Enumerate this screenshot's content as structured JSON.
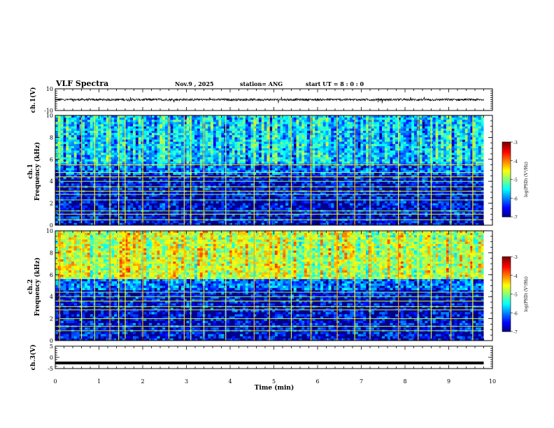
{
  "header": {
    "title": "VLF Spectra",
    "date": "Nov.9  , 2025",
    "station": "station= ANG",
    "start_ut": "start  UT =   8 : 0  : 0"
  },
  "colorbar_label": "log(PSD) (V²/Hz)",
  "colorbar_ticks": [
    "-3",
    "-4",
    "-5",
    "-6",
    "-7"
  ],
  "colors": {
    "background_spectrogram": "#00008b",
    "waveform": "#000000"
  },
  "chart_data": [
    {
      "type": "line",
      "panel": "ch1-waveform",
      "ylabel": "ch.1(V)",
      "ylim": [
        -10,
        10
      ],
      "yticks": [
        "10",
        "-10"
      ],
      "xlim": [
        0,
        10
      ],
      "series": [
        {
          "x_range": [
            0,
            9.8
          ],
          "mean": 0,
          "amplitude": 1
        }
      ],
      "note_of_pattern": "noisy trace around 0 V"
    },
    {
      "type": "heatmap",
      "panel": "ch1-spectrogram",
      "ylabel_top": "ch.1",
      "ylabel": "Frequency (kHz)",
      "ylim": [
        0,
        10
      ],
      "yticks": [
        "0",
        "2",
        "4",
        "6",
        "8",
        "10"
      ],
      "xlim": [
        0,
        10
      ],
      "zlim": [
        -7,
        -3
      ],
      "horizontal_lines_khz": [
        0.5,
        1.0,
        1.3,
        2.3,
        2.8,
        3.1,
        3.5,
        4.0,
        4.4,
        4.8,
        5.5
      ],
      "vertical_lines_min": [
        0.1,
        0.6,
        0.9,
        1.25,
        1.45,
        1.6,
        2.0,
        2.6,
        2.95,
        3.1,
        3.4,
        3.9,
        4.55,
        4.9,
        5.4,
        5.85,
        6.45,
        6.85,
        7.2,
        7.85,
        8.3,
        8.6,
        9.05,
        9.55
      ]
    },
    {
      "type": "heatmap",
      "panel": "ch2-spectrogram",
      "ylabel_top": "ch.2",
      "ylabel": "Frequency (kHz)",
      "ylim": [
        0,
        10
      ],
      "yticks": [
        "0",
        "2",
        "4",
        "6",
        "8",
        "10"
      ],
      "xlim": [
        0,
        10
      ],
      "zlim": [
        -7,
        -3
      ],
      "horizontal_lines_khz": [
        0.9,
        1.3,
        2.0,
        2.8,
        3.1,
        3.6,
        4.0,
        4.4
      ],
      "vertical_lines_min": [
        0.1,
        0.6,
        0.9,
        1.25,
        1.45,
        1.6,
        2.0,
        2.6,
        2.95,
        3.1,
        3.4,
        3.9,
        4.55,
        4.9,
        5.4,
        5.85,
        6.45,
        6.85,
        7.2,
        7.85,
        8.3,
        8.6,
        9.05,
        9.55
      ]
    },
    {
      "type": "line",
      "panel": "ch3-waveform",
      "ylabel": "ch.3(V)",
      "ylim": [
        -5,
        5
      ],
      "yticks": [
        "5",
        "0",
        "-5"
      ],
      "xlim": [
        0,
        10
      ],
      "series": [
        {
          "x_range": [
            0,
            9.8
          ],
          "mean": -2.5,
          "amplitude": 0
        }
      ],
      "xlabel": "Time (min)",
      "xticks": [
        "0",
        "1",
        "2",
        "3",
        "4",
        "5",
        "6",
        "7",
        "8",
        "9",
        "10"
      ]
    }
  ]
}
